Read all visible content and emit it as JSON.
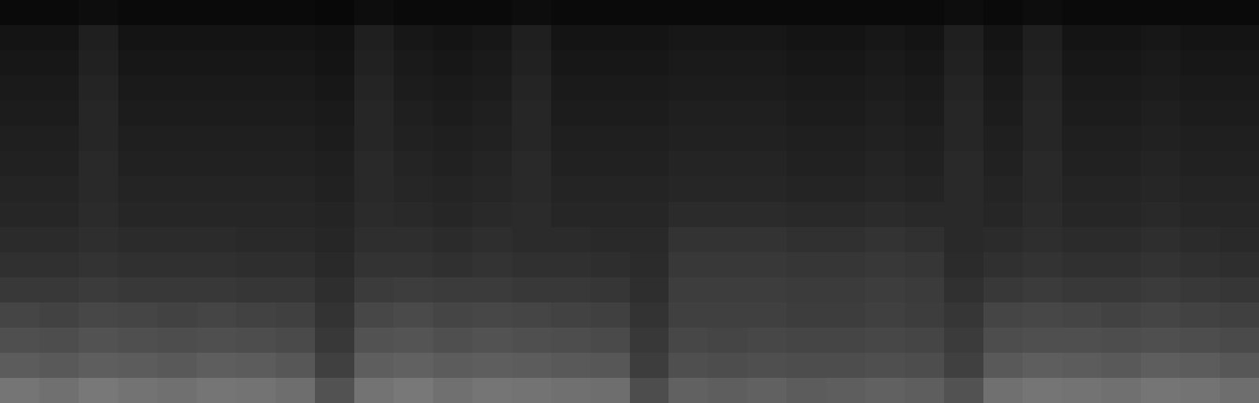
{
  "chart_data": {
    "type": "heatmap",
    "tick_labels": false,
    "grid": false,
    "zlim": [
      0,
      100
    ],
    "z": [
      [
        46,
        44,
        47,
        45,
        44,
        46,
        45,
        43,
        32,
        45,
        47,
        44,
        46,
        45,
        44,
        43,
        30,
        38,
        37,
        38,
        36,
        37,
        38,
        37,
        32,
        44,
        46,
        45,
        44,
        46,
        45,
        43
      ],
      [
        36,
        35,
        37,
        36,
        35,
        37,
        36,
        34,
        25,
        37,
        38,
        36,
        37,
        36,
        35,
        34,
        24,
        31,
        30,
        31,
        30,
        30,
        31,
        30,
        25,
        35,
        37,
        36,
        35,
        37,
        36,
        34
      ],
      [
        31,
        30,
        32,
        31,
        30,
        31,
        30,
        29,
        22,
        32,
        33,
        31,
        32,
        31,
        30,
        29,
        22,
        28,
        27,
        28,
        27,
        27,
        28,
        27,
        23,
        30,
        31,
        31,
        30,
        31,
        30,
        29
      ],
      [
        27,
        26,
        28,
        27,
        26,
        27,
        26,
        25,
        20,
        28,
        29,
        27,
        28,
        27,
        26,
        25,
        20,
        25,
        25,
        25,
        24,
        24,
        25,
        24,
        21,
        27,
        28,
        27,
        26,
        27,
        26,
        25
      ],
      [
        22,
        22,
        23,
        22,
        22,
        22,
        21,
        21,
        18,
        23,
        24,
        23,
        23,
        22,
        22,
        21,
        18,
        24,
        24,
        24,
        23,
        23,
        24,
        23,
        19,
        22,
        23,
        22,
        22,
        23,
        22,
        21
      ],
      [
        19,
        19,
        20,
        19,
        19,
        19,
        18,
        18,
        16,
        20,
        20,
        19,
        20,
        19,
        19,
        18,
        17,
        22,
        22,
        22,
        21,
        21,
        22,
        21,
        17,
        19,
        20,
        19,
        19,
        20,
        19,
        18
      ],
      [
        17,
        17,
        18,
        17,
        17,
        17,
        16,
        16,
        15,
        18,
        18,
        17,
        18,
        17,
        17,
        16,
        16,
        20,
        20,
        20,
        19,
        19,
        20,
        19,
        16,
        17,
        18,
        17,
        17,
        18,
        17,
        16
      ],
      [
        15,
        15,
        17,
        15,
        15,
        15,
        15,
        15,
        14,
        17,
        16,
        15,
        16,
        17,
        15,
        15,
        15,
        17,
        17,
        17,
        16,
        16,
        17,
        16,
        16,
        15,
        17,
        15,
        15,
        16,
        15,
        15
      ],
      [
        14,
        14,
        16,
        14,
        14,
        14,
        14,
        14,
        13,
        16,
        15,
        14,
        15,
        16,
        14,
        14,
        14,
        15,
        15,
        15,
        14,
        14,
        15,
        14,
        16,
        14,
        16,
        14,
        14,
        15,
        14,
        14
      ],
      [
        13,
        13,
        16,
        13,
        13,
        13,
        13,
        13,
        12,
        16,
        14,
        13,
        14,
        16,
        13,
        13,
        13,
        14,
        14,
        14,
        13,
        13,
        14,
        13,
        16,
        13,
        16,
        13,
        13,
        14,
        13,
        13
      ],
      [
        12,
        12,
        15,
        12,
        12,
        12,
        12,
        12,
        11,
        15,
        13,
        12,
        13,
        15,
        12,
        12,
        12,
        13,
        13,
        13,
        12,
        12,
        13,
        12,
        15,
        12,
        15,
        12,
        12,
        13,
        12,
        12
      ],
      [
        11,
        11,
        15,
        11,
        11,
        11,
        11,
        11,
        10,
        15,
        12,
        11,
        12,
        15,
        11,
        11,
        11,
        12,
        12,
        12,
        11,
        11,
        12,
        11,
        15,
        11,
        15,
        11,
        11,
        12,
        11,
        11
      ],
      [
        10,
        10,
        14,
        10,
        10,
        10,
        10,
        10,
        9,
        14,
        11,
        10,
        11,
        14,
        10,
        10,
        10,
        11,
        11,
        11,
        10,
        10,
        11,
        10,
        14,
        10,
        14,
        10,
        10,
        11,
        10,
        10
      ],
      [
        9,
        9,
        13,
        9,
        9,
        9,
        9,
        9,
        8,
        13,
        10,
        9,
        10,
        13,
        9,
        9,
        9,
        10,
        10,
        10,
        9,
        9,
        10,
        9,
        13,
        9,
        13,
        9,
        9,
        10,
        9,
        9
      ],
      [
        8,
        8,
        12,
        8,
        8,
        8,
        8,
        8,
        7,
        12,
        9,
        8,
        9,
        12,
        8,
        8,
        8,
        9,
        9,
        9,
        8,
        8,
        9,
        8,
        12,
        8,
        12,
        8,
        8,
        9,
        8,
        8
      ],
      [
        4,
        4,
        5,
        4,
        4,
        4,
        4,
        4,
        3,
        5,
        4,
        4,
        4,
        5,
        4,
        4,
        4,
        4,
        4,
        4,
        4,
        4,
        4,
        4,
        5,
        4,
        5,
        4,
        4,
        4,
        4,
        4
      ]
    ]
  }
}
